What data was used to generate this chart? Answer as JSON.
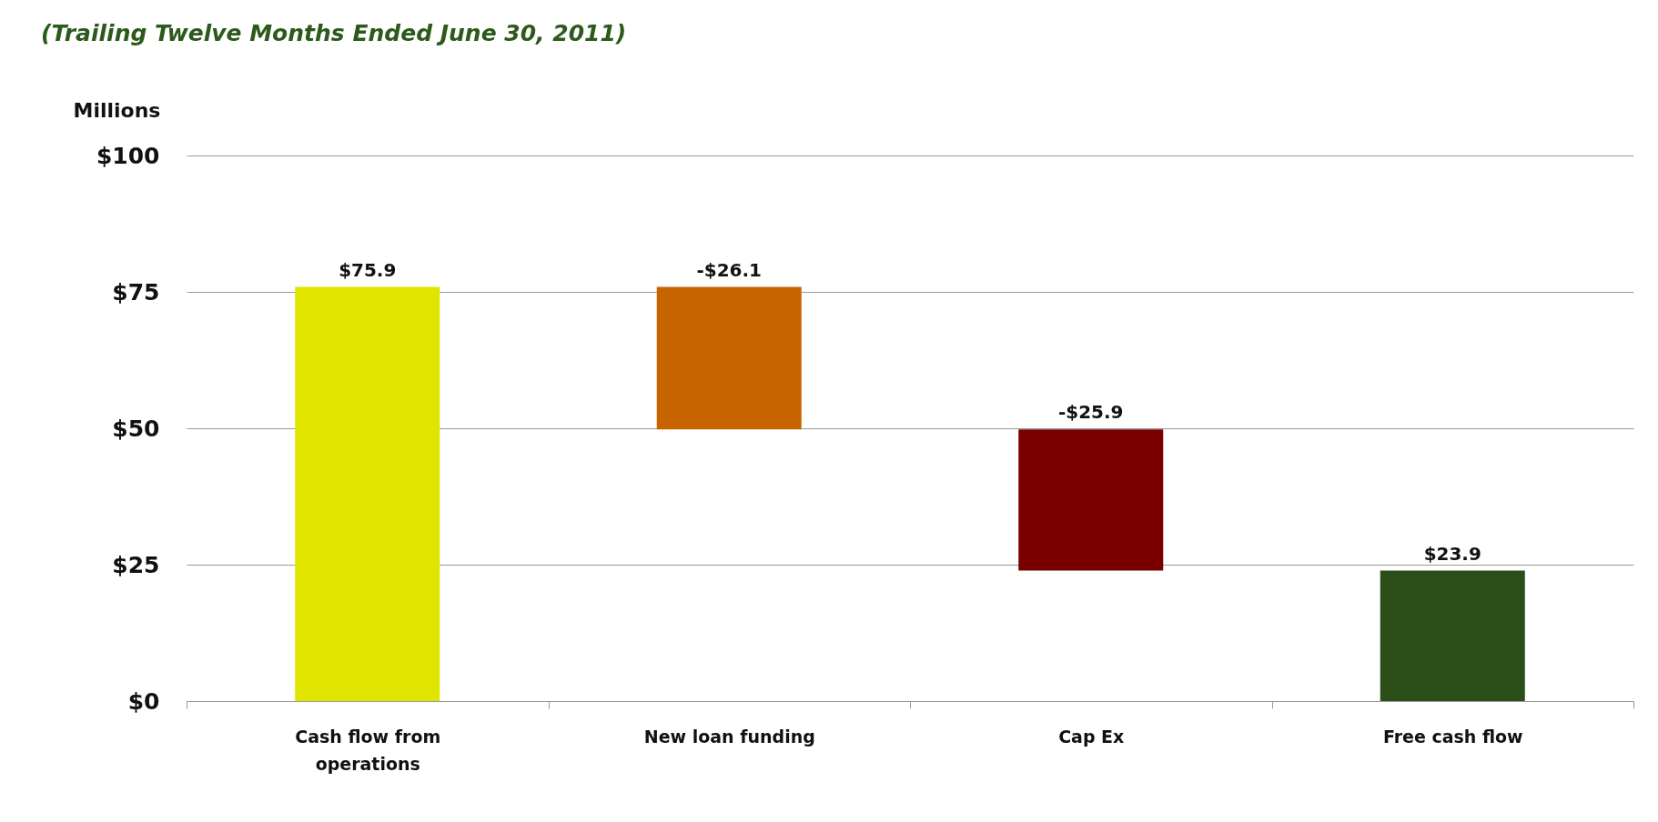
{
  "chart_data": {
    "type": "bar",
    "title": "(Trailing Twelve Months Ended June 30, 2011)",
    "ylabel": "Millions",
    "categories": [
      "Cash flow from operations",
      "New loan funding",
      "Cap Ex",
      "Free cash flow"
    ],
    "values": [
      75.9,
      -26.1,
      -25.9,
      23.9
    ],
    "base": [
      0,
      75.9,
      49.8,
      0
    ],
    "colors": [
      "#e0e500",
      "#c86400",
      "#7a0000",
      "#2b4d17"
    ],
    "value_labels": [
      "$75.9",
      "-$26.1",
      "-$25.9",
      "$23.9"
    ],
    "ylim": [
      0,
      100
    ],
    "yticks": [
      {
        "value": 0,
        "label": "$0"
      },
      {
        "value": 25,
        "label": "$25"
      },
      {
        "value": 50,
        "label": "$50"
      },
      {
        "value": 75,
        "label": "$75"
      },
      {
        "value": 100,
        "label": "$100"
      }
    ],
    "grid": "y"
  }
}
